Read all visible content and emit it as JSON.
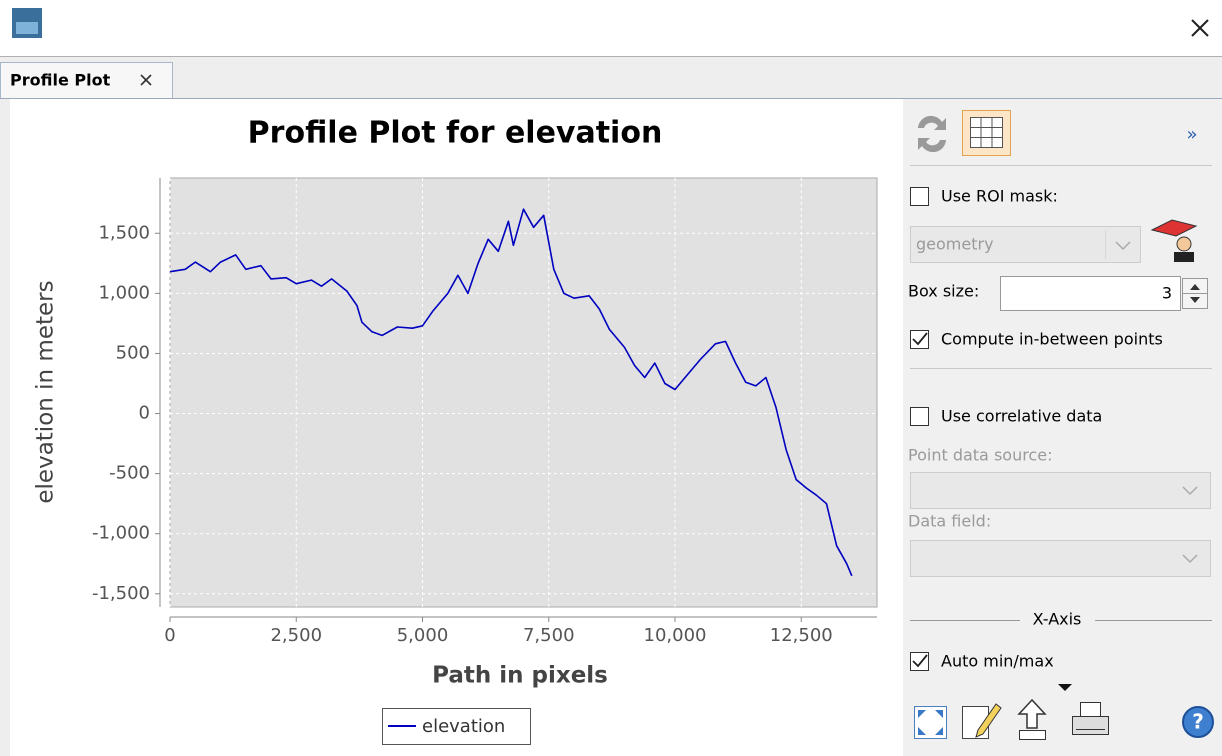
{
  "window": {
    "tab": "Profile Plot"
  },
  "panel": {
    "use_roi_mask": "Use ROI mask:",
    "mask_choice": "geometry",
    "box_size_label": "Box size:",
    "box_size": "3",
    "compute_between": "Compute in-between points",
    "use_correlative": "Use correlative data",
    "point_source": "Point data source:",
    "data_field": "Data field:",
    "x_axis": "X-Axis",
    "auto_minmax": "Auto min/max",
    "expand": "»",
    "help": "?"
  },
  "chart_data": {
    "type": "line",
    "title": "Profile Plot for elevation",
    "xlabel": "Path in pixels",
    "ylabel": "elevation in meters",
    "x": [
      0,
      300,
      500,
      800,
      1000,
      1300,
      1500,
      1800,
      2000,
      2300,
      2500,
      2800,
      3000,
      3200,
      3500,
      3700,
      3800,
      4000,
      4200,
      4500,
      4800,
      5000,
      5200,
      5500,
      5700,
      5900,
      6100,
      6300,
      6500,
      6700,
      6800,
      7000,
      7200,
      7400,
      7600,
      7800,
      8000,
      8300,
      8500,
      8700,
      9000,
      9200,
      9400,
      9600,
      9800,
      10000,
      10200,
      10500,
      10800,
      11000,
      11200,
      11400,
      11600,
      11800,
      12000,
      12200,
      12400,
      12600,
      12800,
      13000,
      13200,
      13400,
      13500
    ],
    "series": [
      {
        "name": "elevation",
        "color": "#0000c0",
        "values": [
          1180,
          1200,
          1260,
          1180,
          1260,
          1320,
          1200,
          1230,
          1120,
          1130,
          1080,
          1110,
          1060,
          1120,
          1020,
          900,
          760,
          680,
          650,
          720,
          710,
          730,
          850,
          1000,
          1150,
          1000,
          1250,
          1450,
          1350,
          1600,
          1400,
          1700,
          1550,
          1650,
          1200,
          1000,
          960,
          980,
          870,
          700,
          550,
          400,
          300,
          420,
          250,
          200,
          300,
          450,
          580,
          600,
          420,
          260,
          230,
          300,
          50,
          -300,
          -550,
          -620,
          -680,
          -750,
          -1100,
          -1250,
          -1350
        ]
      }
    ],
    "xlim": [
      0,
      14000
    ],
    "ylim": [
      -1610,
      1960
    ],
    "xticks": [
      0,
      {
        "value": 2500,
        "label": "2,500"
      },
      {
        "value": 5000,
        "label": "5,000"
      },
      {
        "value": 7500,
        "label": "7,500"
      },
      {
        "value": 10000,
        "label": "10,000"
      },
      {
        "value": 12500,
        "label": "12,500"
      }
    ],
    "yticks": [
      {
        "value": -1500,
        "label": "-1,500"
      },
      {
        "value": -1000,
        "label": "-1,000"
      },
      -500,
      0,
      500,
      {
        "value": 1000,
        "label": "1,000"
      },
      {
        "value": 1500,
        "label": "1,500"
      }
    ],
    "grid": true,
    "legend": "bottom"
  }
}
